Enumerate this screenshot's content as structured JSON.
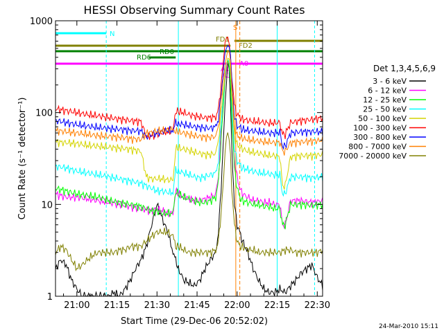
{
  "chart_data": {
    "type": "line",
    "title": "HESSI Observing Summary Count Rates",
    "xlabel": "Start Time (29-Dec-06 20:52:02)",
    "ylabel": "Count Rate (s⁻¹ detector⁻¹)",
    "y_scale": "log",
    "ylim": [
      1,
      1000
    ],
    "xlim_minutes_after_2100": [
      -8,
      92
    ],
    "x_tick_labels": [
      "21:00",
      "21:15",
      "21:30",
      "21:45",
      "22:00",
      "22:15",
      "22:30"
    ],
    "x_tick_minutes_after_2100": [
      0,
      15,
      30,
      45,
      60,
      75,
      90
    ],
    "y_tick_labels": [
      "1",
      "10",
      "100",
      "1000"
    ],
    "y_tick_values": [
      1,
      10,
      100,
      1000
    ],
    "legend_title": "Det 1,3,4,5,6,9",
    "legend_position": "right",
    "footer_stamp": "24-Mar-2010 15:11",
    "x_units": "minutes after 21:00 UT on 29-Dec-06",
    "series": [
      {
        "name": "3 - 6 keV",
        "color": "#000000",
        "x": [
          -8,
          -6,
          -4,
          -2,
          0,
          2,
          4,
          6,
          8,
          10,
          12,
          14,
          16,
          18,
          20,
          22,
          24,
          26,
          28,
          30,
          32,
          34,
          36,
          37,
          38,
          40,
          42,
          44,
          46,
          48,
          50,
          52,
          53,
          54,
          55,
          55.5,
          56,
          56.5,
          57,
          57.5,
          58,
          59,
          60,
          61,
          62,
          64,
          66,
          68,
          70,
          72,
          74,
          76,
          78,
          80,
          82,
          84,
          86,
          88,
          90,
          92
        ],
        "y": [
          2,
          2.5,
          2.2,
          1.5,
          1.2,
          1,
          1,
          1,
          1,
          1,
          1,
          1.1,
          1,
          1.2,
          1.5,
          2,
          2.5,
          3.5,
          6,
          10,
          7,
          5,
          3,
          2.5,
          2,
          1.5,
          1.4,
          1.3,
          1.5,
          2,
          2.5,
          3,
          5,
          15,
          60,
          120,
          200,
          350,
          300,
          120,
          40,
          10,
          6,
          5,
          4,
          3,
          2,
          1.5,
          1.2,
          1.1,
          1.1,
          1.2,
          1.1,
          1.3,
          1.5,
          1.8,
          2,
          2.2,
          1.6,
          1.3
        ]
      },
      {
        "name": "6 - 12 keV",
        "color": "#ff00ff",
        "x": [
          -8,
          -4,
          0,
          4,
          8,
          12,
          16,
          20,
          24,
          26,
          28,
          30,
          32,
          34,
          36,
          37,
          38,
          40,
          42,
          44,
          46,
          48,
          50,
          52,
          53,
          54,
          55,
          55.5,
          56,
          56.5,
          57,
          57.5,
          58,
          59,
          60,
          61,
          62,
          64,
          66,
          68,
          70,
          72,
          74,
          76,
          77,
          78,
          80,
          84,
          88,
          92
        ],
        "y": [
          13,
          12,
          12,
          11.5,
          11,
          10.5,
          10,
          9.5,
          9,
          8.8,
          8.5,
          9,
          8.5,
          8,
          8,
          14,
          13,
          12,
          11.5,
          11,
          11,
          11.5,
          12,
          13,
          20,
          60,
          150,
          250,
          320,
          380,
          350,
          250,
          100,
          30,
          20,
          15,
          13,
          12,
          11,
          11,
          10.5,
          10.5,
          10,
          10,
          6,
          6,
          11,
          11,
          10.5,
          11
        ]
      },
      {
        "name": "12 - 25 keV",
        "color": "#00ff00",
        "x": [
          -8,
          -4,
          0,
          4,
          8,
          12,
          16,
          20,
          24,
          26,
          28,
          30,
          32,
          34,
          36,
          37,
          38,
          40,
          42,
          44,
          46,
          48,
          50,
          52,
          53,
          54,
          55,
          55.5,
          56,
          56.5,
          57,
          57.5,
          58,
          59,
          60,
          61,
          62,
          64,
          66,
          68,
          70,
          72,
          74,
          76,
          77,
          78,
          80,
          84,
          88,
          92
        ],
        "y": [
          15,
          14,
          13,
          12.5,
          12,
          11,
          10.5,
          10,
          9.5,
          9,
          8.5,
          8.5,
          8,
          8,
          8,
          14,
          13,
          12,
          11.5,
          11,
          10.5,
          10.5,
          11,
          12,
          18,
          50,
          140,
          230,
          300,
          360,
          330,
          240,
          90,
          25,
          15,
          12,
          11,
          10.5,
          10,
          10,
          9.5,
          9.5,
          9,
          9,
          6,
          6,
          10,
          10,
          9.8,
          10
        ]
      },
      {
        "name": "25 - 50 keV",
        "color": "#00ffff",
        "x": [
          -8,
          -4,
          0,
          4,
          8,
          12,
          16,
          20,
          24,
          26,
          28,
          30,
          32,
          34,
          36,
          37,
          38,
          40,
          42,
          44,
          46,
          48,
          50,
          52,
          53,
          54,
          55,
          55.5,
          56,
          56.5,
          57,
          57.5,
          58,
          59,
          60,
          61,
          62,
          64,
          66,
          68,
          70,
          72,
          74,
          76,
          77,
          78,
          80,
          84,
          88,
          92
        ],
        "y": [
          26,
          25,
          23,
          22,
          21,
          20,
          19,
          18,
          17,
          16,
          15,
          14,
          14,
          13.5,
          13.5,
          24,
          23,
          22,
          21,
          20,
          19.5,
          20,
          21,
          22,
          30,
          80,
          170,
          260,
          330,
          380,
          350,
          260,
          120,
          40,
          30,
          27,
          25,
          24,
          23,
          22,
          22,
          21.5,
          21,
          21,
          13,
          13,
          20,
          20,
          19.5,
          20
        ]
      },
      {
        "name": "50 - 100 keV",
        "color": "#d4d400",
        "x": [
          -8,
          -4,
          0,
          4,
          8,
          12,
          16,
          20,
          24,
          26,
          28,
          30,
          32,
          34,
          36,
          37,
          38,
          40,
          42,
          44,
          46,
          48,
          50,
          52,
          53,
          54,
          55,
          55.5,
          56,
          56.5,
          57,
          57.5,
          58,
          59,
          60,
          61,
          62,
          64,
          66,
          68,
          70,
          72,
          74,
          76,
          77,
          78,
          80,
          84,
          88,
          92
        ],
        "y": [
          48,
          47,
          46,
          44,
          43,
          42,
          41,
          40,
          38,
          20,
          19,
          19,
          19,
          18.5,
          18.5,
          40,
          41,
          40,
          39,
          37,
          36,
          35,
          35,
          36,
          50,
          100,
          200,
          290,
          350,
          400,
          370,
          280,
          150,
          55,
          45,
          42,
          40,
          38,
          37,
          36,
          35,
          34,
          34,
          33,
          16,
          16,
          33,
          34,
          34,
          35
        ]
      },
      {
        "name": "100 - 300 keV",
        "color": "#ff0000",
        "x": [
          -8,
          -4,
          0,
          4,
          8,
          12,
          16,
          20,
          24,
          26,
          28,
          30,
          32,
          34,
          36,
          37,
          38,
          40,
          42,
          44,
          46,
          48,
          50,
          52,
          53,
          54,
          55,
          55.5,
          56,
          56.5,
          57,
          57.5,
          58,
          59,
          60,
          61,
          62,
          64,
          66,
          68,
          70,
          72,
          74,
          76,
          77,
          78,
          80,
          84,
          88,
          92
        ],
        "y": [
          110,
          105,
          100,
          95,
          92,
          88,
          85,
          82,
          80,
          55,
          56,
          58,
          60,
          62,
          63,
          105,
          102,
          100,
          95,
          92,
          90,
          88,
          88,
          90,
          110,
          200,
          400,
          550,
          600,
          650,
          600,
          480,
          260,
          120,
          95,
          90,
          85,
          82,
          80,
          80,
          78,
          77,
          77,
          78,
          58,
          58,
          78,
          82,
          84,
          88
        ]
      },
      {
        "name": "300 - 800 keV",
        "color": "#0000ff",
        "x": [
          -8,
          -4,
          0,
          4,
          8,
          12,
          16,
          20,
          24,
          26,
          28,
          30,
          32,
          34,
          36,
          37,
          38,
          40,
          42,
          44,
          46,
          48,
          50,
          52,
          53,
          54,
          55,
          55.5,
          56,
          56.5,
          57,
          57.5,
          58,
          59,
          60,
          61,
          62,
          64,
          66,
          68,
          70,
          72,
          74,
          76,
          77,
          78,
          80,
          84,
          88,
          92
        ],
        "y": [
          82,
          78,
          74,
          71,
          69,
          67,
          66,
          64,
          63,
          55,
          57,
          60,
          62,
          64,
          64,
          78,
          76,
          74,
          72,
          70,
          69,
          68,
          68,
          70,
          85,
          160,
          320,
          440,
          500,
          540,
          500,
          400,
          220,
          90,
          72,
          69,
          66,
          64,
          63,
          62,
          61,
          60,
          60,
          61,
          43,
          43,
          60,
          62,
          62,
          62
        ]
      },
      {
        "name": "800 - 7000 keV",
        "color": "#ff8000",
        "x": [
          -8,
          -4,
          0,
          4,
          8,
          12,
          16,
          20,
          24,
          26,
          28,
          30,
          32,
          34,
          36,
          37,
          38,
          40,
          42,
          44,
          46,
          48,
          50,
          52,
          53,
          54,
          55,
          55.5,
          56,
          56.5,
          57,
          57.5,
          58,
          59,
          60,
          61,
          62,
          64,
          66,
          68,
          70,
          72,
          74,
          76,
          77,
          78,
          80,
          84,
          88,
          92
        ],
        "y": [
          64,
          62,
          60,
          58,
          56,
          55,
          54,
          52,
          51,
          60,
          61,
          63,
          64,
          65,
          66,
          62,
          61,
          60,
          58,
          56,
          55,
          54,
          54,
          55,
          70,
          130,
          260,
          380,
          440,
          480,
          440,
          360,
          190,
          70,
          56,
          54,
          52,
          51,
          50,
          49,
          48,
          48,
          47,
          48,
          38,
          38,
          47,
          48,
          49,
          50
        ]
      },
      {
        "name": "7000 - 20000 keV",
        "color": "#808000",
        "x": [
          -8,
          -6,
          -4,
          -2,
          0,
          2,
          4,
          6,
          8,
          10,
          12,
          14,
          16,
          18,
          20,
          22,
          24,
          26,
          28,
          30,
          32,
          34,
          36,
          37,
          38,
          40,
          42,
          44,
          46,
          48,
          50,
          52,
          53,
          54,
          55,
          55.5,
          56,
          56.5,
          57,
          57.5,
          58,
          59,
          60,
          61,
          62,
          64,
          66,
          68,
          70,
          72,
          74,
          76,
          78,
          80,
          82,
          84,
          86,
          88,
          90,
          92
        ],
        "y": [
          3,
          3.5,
          3.2,
          2.5,
          2,
          2.2,
          2.5,
          2.8,
          3,
          3,
          3,
          3,
          3.2,
          3.2,
          3.5,
          3.5,
          3.5,
          4,
          4.5,
          5,
          5,
          5,
          4.5,
          3.5,
          3.5,
          3.2,
          3,
          3,
          3,
          3,
          3,
          3.2,
          4,
          8,
          20,
          35,
          50,
          60,
          55,
          40,
          15,
          6,
          4,
          3.5,
          3.5,
          3.2,
          3.2,
          3,
          3,
          3,
          3,
          3,
          3.2,
          3.2,
          3,
          3,
          3,
          3,
          3,
          3.2
        ]
      }
    ],
    "annotations": [
      {
        "label": "N",
        "x_minutes": [
          -8,
          11
        ],
        "color": "#00ffff"
      },
      {
        "label": "S",
        "x_minutes": [
          60
        ],
        "color": "#ff8000"
      },
      {
        "label": "FD1",
        "x_minutes": [
          -8,
          57.5
        ],
        "color": "#808000"
      },
      {
        "label": "FD2",
        "x_minutes": [
          59,
          92
        ],
        "color": "#808000"
      },
      {
        "label": "RD0",
        "x_minutes": [
          -8,
          92
        ],
        "color": "#008000"
      },
      {
        "label": "RD6",
        "x_minutes": [
          27,
          37
        ],
        "color": "#008000"
      },
      {
        "label": "A1",
        "x_minutes": [
          56.5
        ],
        "color": "#ff00ff"
      },
      {
        "label": "A0",
        "x_minutes": [
          -8,
          92
        ],
        "color": "#ff00ff"
      },
      {
        "label": "A3",
        "x_minutes": [
          57.5
        ],
        "color": "#ff00ff"
      }
    ]
  }
}
